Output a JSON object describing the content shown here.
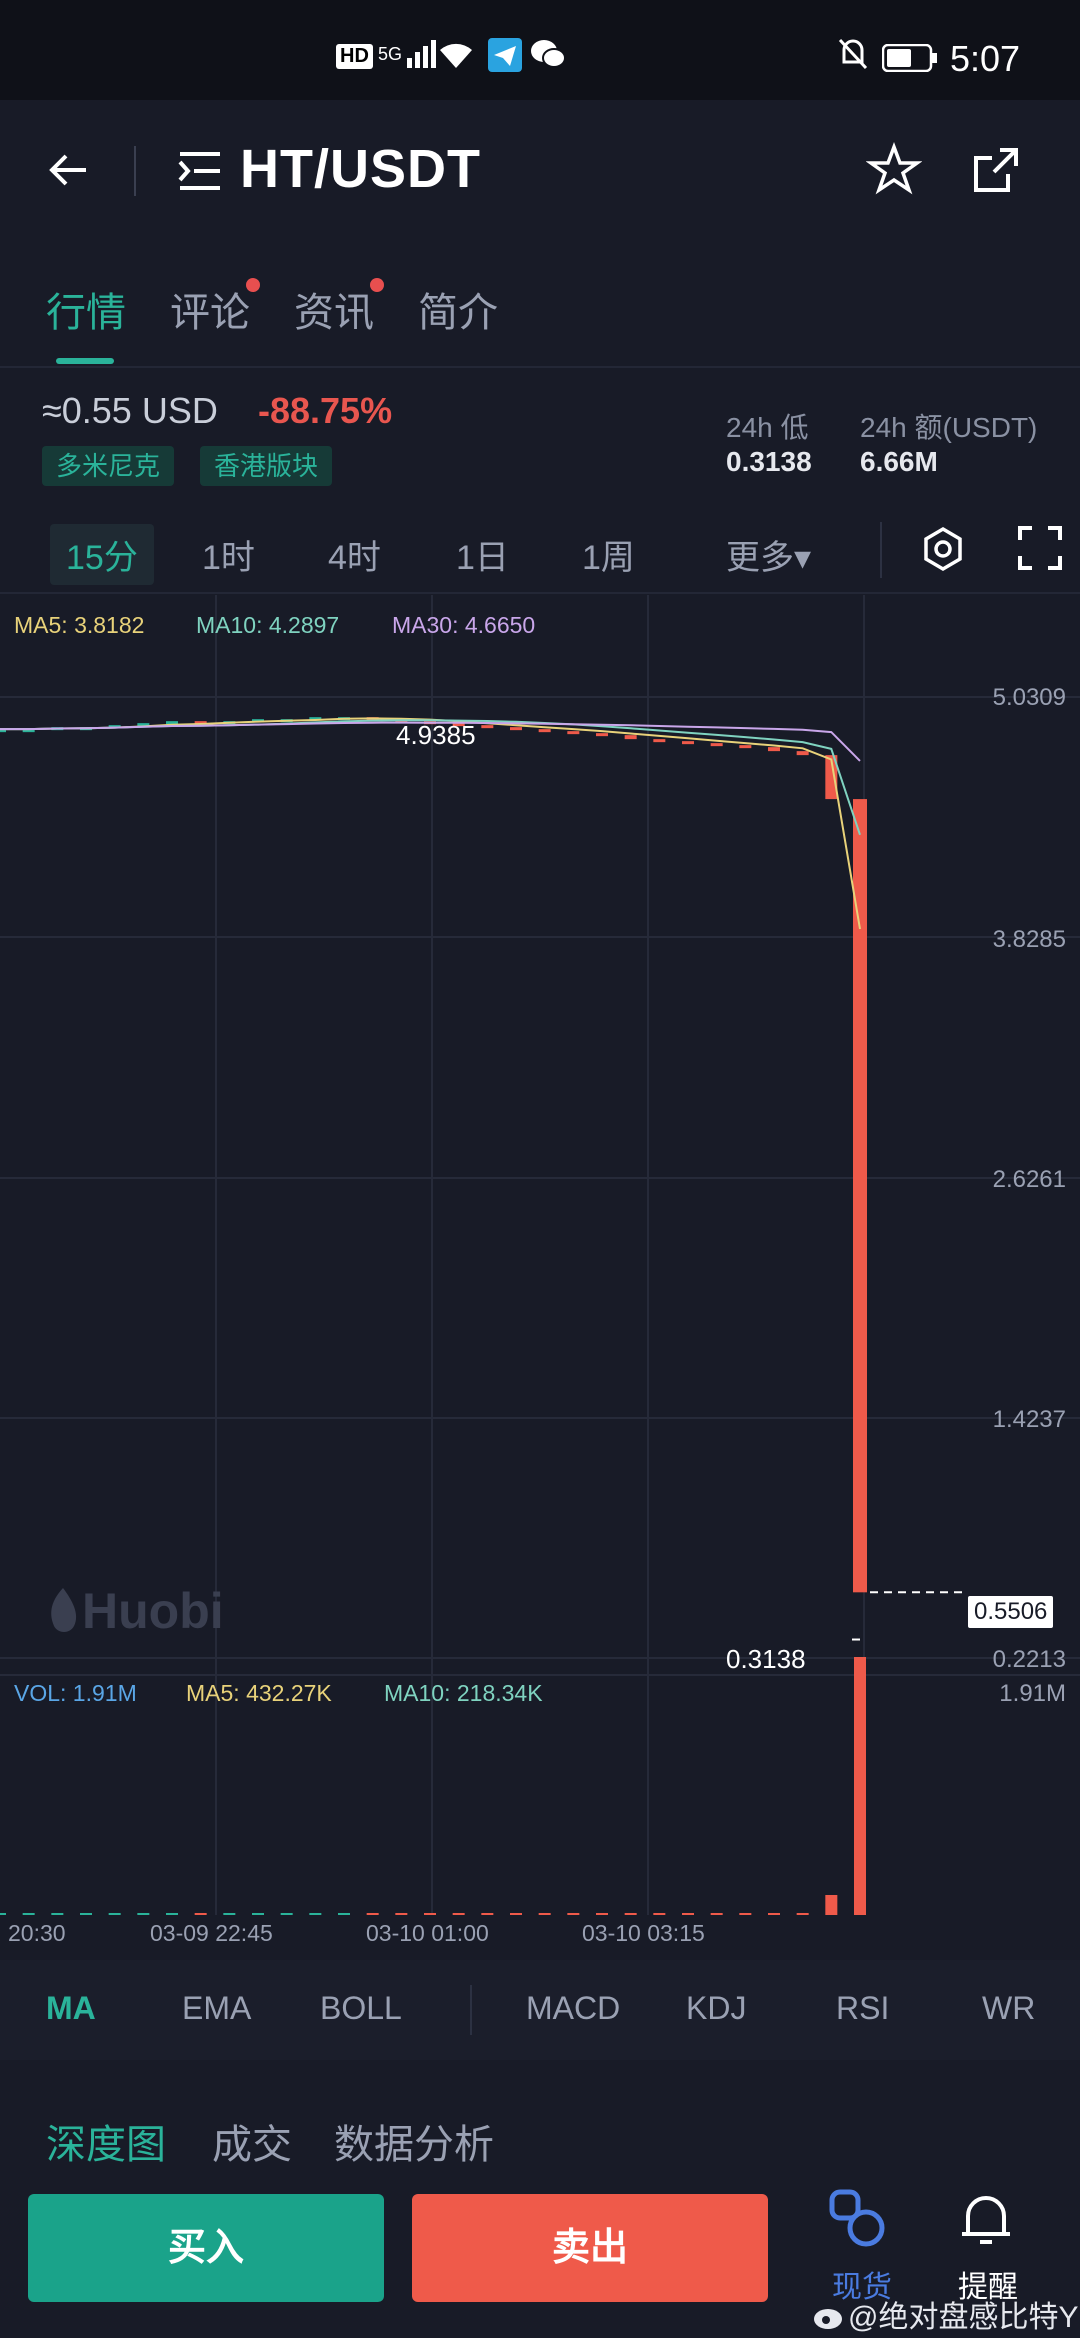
{
  "status_bar": {
    "left_icons": [
      "hd-icon",
      "5g-signal-icon",
      "wifi-icon",
      "telegram-icon",
      "wechat-icon"
    ],
    "hd": "HD",
    "net": "5G",
    "time": "5:07"
  },
  "header": {
    "title": "HT/USDT"
  },
  "tabs": [
    {
      "label": "行情",
      "active": true,
      "dot": false
    },
    {
      "label": "评论",
      "active": false,
      "dot": true
    },
    {
      "label": "资讯",
      "active": false,
      "dot": true
    },
    {
      "label": "简介",
      "active": false,
      "dot": false
    }
  ],
  "price": {
    "value": "≈0.55 USD",
    "change": "-88.75%",
    "tags": [
      "多米尼克",
      "香港版块"
    ],
    "low_label": "24h 低",
    "low_value": "0.3138",
    "amount_label": "24h 额(USDT)",
    "amount_value": "6.66M"
  },
  "periods": [
    {
      "label": "15分",
      "active": true
    },
    {
      "label": "1时",
      "active": false
    },
    {
      "label": "4时",
      "active": false
    },
    {
      "label": "1日",
      "active": false
    },
    {
      "label": "1周",
      "active": false
    }
  ],
  "more_label": "更多▾",
  "chart_legend": {
    "ma5": "MA5: 3.8182",
    "ma10": "MA10: 4.2897",
    "ma30": "MA30: 4.6650",
    "vol": "VOL: 1.91M",
    "vol_ma5": "MA5: 432.27K",
    "vol_ma10": "MA10: 218.34K"
  },
  "chart_data": {
    "type": "candlestick",
    "y_ticks": [
      "5.0309",
      "3.8285",
      "2.6261",
      "1.4237",
      "0.2213"
    ],
    "ylim": [
      0.2213,
      5.0309
    ],
    "x_ticks": [
      "20:30",
      "03-09 22:45",
      "03-10 01:00",
      "03-10 03:15"
    ],
    "high_marker": "4.9385",
    "low_marker": "0.3138",
    "last_price": "0.5506",
    "volume_max_label": "1.91M",
    "brand_watermark": "Huobi",
    "colors": {
      "up": "#2ab39a",
      "down": "#ef5a4a",
      "ma5": "#e8d27a",
      "ma10": "#7fd3c0",
      "ma30": "#c9a6ea"
    },
    "candles_close": [
      4.87,
      4.87,
      4.88,
      4.88,
      4.89,
      4.9,
      4.91,
      4.9,
      4.91,
      4.92,
      4.92,
      4.93,
      4.93,
      4.92,
      4.91,
      4.9,
      4.89,
      4.88,
      4.87,
      4.86,
      4.85,
      4.84,
      4.82,
      4.81,
      4.8,
      4.79,
      4.78,
      4.76,
      4.74,
      4.52,
      0.55
    ]
  },
  "indicators": [
    {
      "label": "MA",
      "active": true
    },
    {
      "label": "EMA",
      "active": false
    },
    {
      "label": "BOLL",
      "active": false
    },
    {
      "label": "MACD",
      "active": false
    },
    {
      "label": "KDJ",
      "active": false
    },
    {
      "label": "RSI",
      "active": false
    },
    {
      "label": "WR",
      "active": false
    }
  ],
  "lower_tabs": [
    "深度图",
    "成交",
    "数据分析"
  ],
  "bottom": {
    "buy": "买入",
    "sell": "卖出",
    "spot": "现货",
    "alert": "提醒",
    "credit": "@绝对盘感比特Y"
  }
}
